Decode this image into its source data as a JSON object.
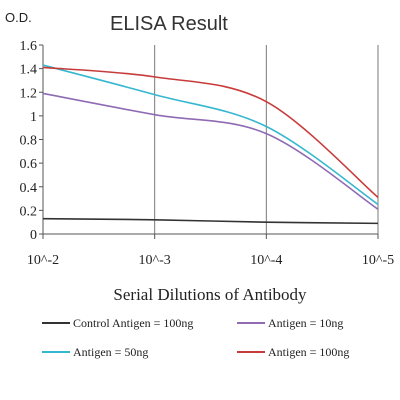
{
  "chart_data": {
    "type": "line",
    "title": "ELISA Result",
    "ylabel": "O.D.",
    "xlabel": "Serial Dilutions of Antibody",
    "x": [
      "10^-2",
      "10^-3",
      "10^-4",
      "10^-5"
    ],
    "ylim": [
      0,
      1.6
    ],
    "yticks": [
      "0",
      "0.2",
      "0.4",
      "0.6",
      "0.8",
      "1",
      "1.2",
      "1.4",
      "1.6"
    ],
    "grid": "vertical",
    "legend_position": "bottom",
    "series": [
      {
        "name": "Control Antigen = 100ng",
        "color": "#333333",
        "values": [
          0.13,
          0.12,
          0.1,
          0.09
        ]
      },
      {
        "name": "Antigen = 10ng",
        "color": "#8f6bb4",
        "values": [
          1.19,
          1.01,
          0.85,
          0.21
        ]
      },
      {
        "name": "Antigen = 50ng",
        "color": "#35b8cf",
        "values": [
          1.43,
          1.18,
          0.91,
          0.25
        ]
      },
      {
        "name": "Antigen = 100ng",
        "color": "#c83b3b",
        "values": [
          1.41,
          1.33,
          1.12,
          0.31
        ]
      }
    ]
  }
}
